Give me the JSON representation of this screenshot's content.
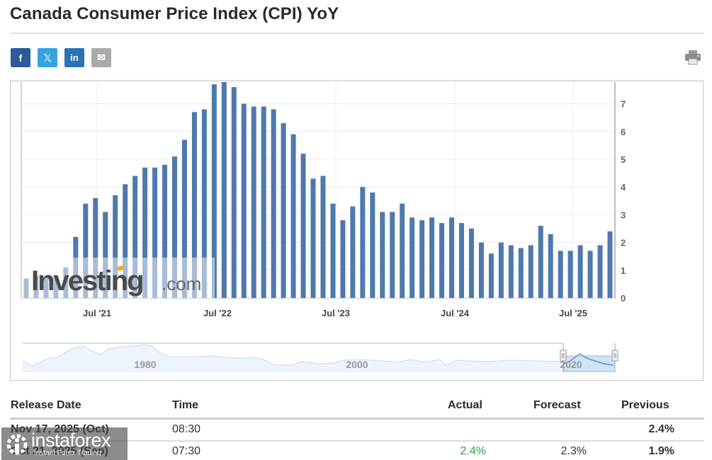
{
  "header": {
    "title": "Canada Consumer Price Index (CPI) YoY",
    "share_buttons": [
      {
        "name": "facebook",
        "label": "f",
        "color": "#2c5a9a"
      },
      {
        "name": "x-twitter",
        "label": "𝕏",
        "color": "#34a4e0"
      },
      {
        "name": "linkedin",
        "label": "in",
        "color": "#2b73b5"
      },
      {
        "name": "email",
        "label": "✉",
        "color": "#aaaaaa"
      }
    ],
    "print_icon": "printer-icon"
  },
  "chart_data": {
    "type": "bar",
    "title": "Canada Consumer Price Index (CPI) YoY",
    "xlabel": "",
    "ylabel": "",
    "ylim": [
      0,
      7.8
    ],
    "y_ticks": [
      0,
      1,
      2,
      3,
      4,
      5,
      6,
      7
    ],
    "y_axis_position": "right",
    "x_tick_labels": [
      "Jul '21",
      "Jul '22",
      "Jul '23",
      "Jul '24",
      "Jul '25"
    ],
    "grid": true,
    "bar_color": "#4f79ad",
    "categories": [
      "Oct 2020",
      "Nov 2020",
      "Dec 2020",
      "Jan 2021",
      "Feb 2021",
      "Mar 2021",
      "Apr 2021",
      "May 2021",
      "Jun 2021",
      "Jul 2021",
      "Aug 2021",
      "Sep 2021",
      "Oct 2021",
      "Nov 2021",
      "Dec 2021",
      "Jan 2022",
      "Feb 2022",
      "Mar 2022",
      "Apr 2022",
      "May 2022",
      "Jun 2022",
      "Jul 2022",
      "Aug 2022",
      "Sep 2022",
      "Oct 2022",
      "Nov 2022",
      "Dec 2022",
      "Jan 2023",
      "Feb 2023",
      "Mar 2023",
      "Apr 2023",
      "May 2023",
      "Jun 2023",
      "Jul 2023",
      "Aug 2023",
      "Sep 2023",
      "Oct 2023",
      "Nov 2023",
      "Dec 2023",
      "Jan 2024",
      "Feb 2024",
      "Mar 2024",
      "Apr 2024",
      "May 2024",
      "Jun 2024",
      "Jul 2024",
      "Aug 2024",
      "Sep 2024",
      "Oct 2024",
      "Nov 2024",
      "Dec 2024",
      "Jan 2025",
      "Feb 2025",
      "Mar 2025",
      "Apr 2025",
      "May 2025",
      "Jun 2025",
      "Jul 2025",
      "Aug 2025",
      "Sep 2025"
    ],
    "values": [
      0.7,
      0.8,
      0.7,
      0.8,
      1.1,
      2.2,
      3.4,
      3.6,
      3.1,
      3.7,
      4.1,
      4.4,
      4.7,
      4.7,
      4.8,
      5.1,
      5.7,
      6.7,
      6.8,
      7.7,
      8.1,
      7.6,
      7.0,
      6.9,
      6.9,
      6.8,
      6.3,
      5.9,
      5.2,
      4.3,
      4.4,
      3.4,
      2.8,
      3.3,
      4.0,
      3.8,
      3.1,
      3.1,
      3.4,
      2.9,
      2.8,
      2.9,
      2.7,
      2.9,
      2.7,
      2.5,
      2.0,
      1.6,
      2.0,
      1.9,
      1.8,
      1.9,
      2.6,
      2.3,
      1.7,
      1.7,
      1.9,
      1.7,
      1.9,
      2.4
    ],
    "navigator": {
      "labels": [
        "1980",
        "2000",
        "2020"
      ]
    },
    "watermark": "Investing.com"
  },
  "table": {
    "columns": [
      "Release Date",
      "Time",
      "Actual",
      "Forecast",
      "Previous"
    ],
    "rows": [
      {
        "date": "Nov 17, 2025 (Oct)",
        "time": "08:30",
        "actual": "",
        "forecast": "",
        "previous": "2.4%"
      },
      {
        "date": "Oct 21, 2025 (Sep)",
        "time": "07:30",
        "actual": "2.4%",
        "forecast": "2.3%",
        "previous": "1.9%"
      }
    ],
    "actual_color": "#28a745"
  },
  "overlay": {
    "brand": "instaforex",
    "tagline": "Instant Forex Trading"
  }
}
